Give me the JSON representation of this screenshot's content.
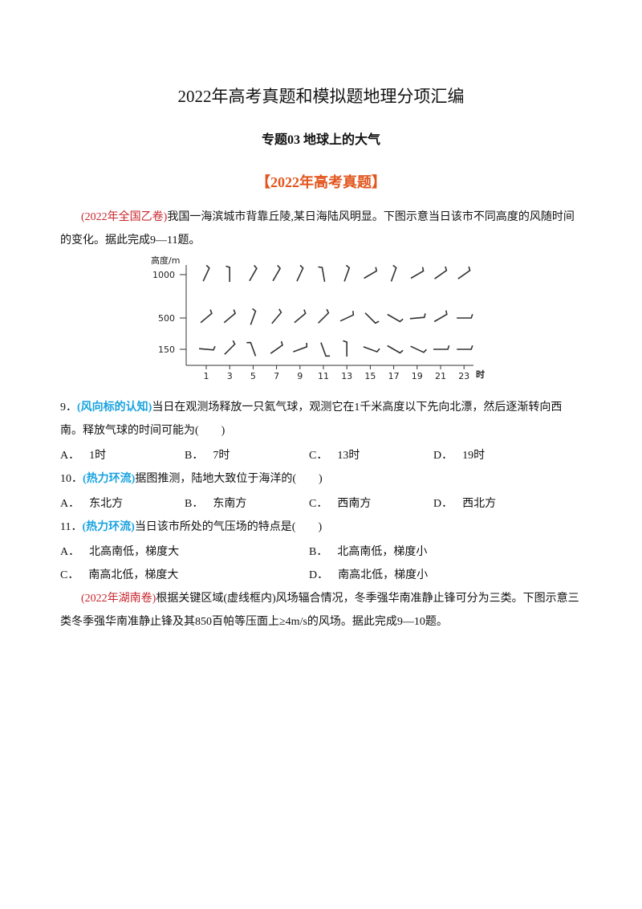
{
  "header": {
    "title": "2022年高考真题和模拟题地理分项汇编",
    "subtitle": "专题03  地球上的大气",
    "section": "【2022年高考真题】"
  },
  "passages": [
    {
      "source": "(2022年全国乙卷)",
      "text": "我国一海滨城市背靠丘陵,某日海陆风明显。下图示意当日该市不同高度的风随时间的变化。据此完成9—11题。"
    },
    {
      "source": "(2022年湖南卷)",
      "text": "根据关键区域(虚线框内)风场辐合情况，冬季强华南准静止锋可分为三类。下图示意三类冬季强华南准静止锋及其850百帕等压面上≥4m/s的风场。据此完成9—10题。"
    }
  ],
  "figure": {
    "y_axis_title": "高度/m",
    "y_labels": [
      "1000",
      "500",
      "150"
    ],
    "x_labels": [
      "1",
      "3",
      "5",
      "7",
      "9",
      "11",
      "13",
      "15",
      "17",
      "19",
      "21",
      "23"
    ],
    "x_unit": "时"
  },
  "questions": [
    {
      "number": "9．",
      "tag": "(风向标的认知)",
      "text": "当日在观测场释放一只氦气球，观测它在1千米高度以下先向北漂，然后逐渐转向西南。释放气球的时间可能为(　　)",
      "options": [
        {
          "letter": "A．",
          "text": "1时"
        },
        {
          "letter": "B．",
          "text": "7时"
        },
        {
          "letter": "C．",
          "text": "13时"
        },
        {
          "letter": "D．",
          "text": "19时"
        }
      ]
    },
    {
      "number": "10．",
      "tag": "(热力环流)",
      "text": "据图推测，陆地大致位于海洋的(　　)",
      "options": [
        {
          "letter": "A．",
          "text": "东北方"
        },
        {
          "letter": "B．",
          "text": "东南方"
        },
        {
          "letter": "C．",
          "text": "西南方"
        },
        {
          "letter": "D．",
          "text": "西北方"
        }
      ]
    },
    {
      "number": "11．",
      "tag": "(热力环流)",
      "text": "当日该市所处的气压场的特点是(　　)",
      "options": [
        {
          "letter": "A．",
          "text": "北高南低，梯度大"
        },
        {
          "letter": "B．",
          "text": "北高南低，梯度小"
        },
        {
          "letter": "C．",
          "text": "南高北低，梯度大"
        },
        {
          "letter": "D．",
          "text": "南高北低，梯度小"
        }
      ]
    }
  ]
}
